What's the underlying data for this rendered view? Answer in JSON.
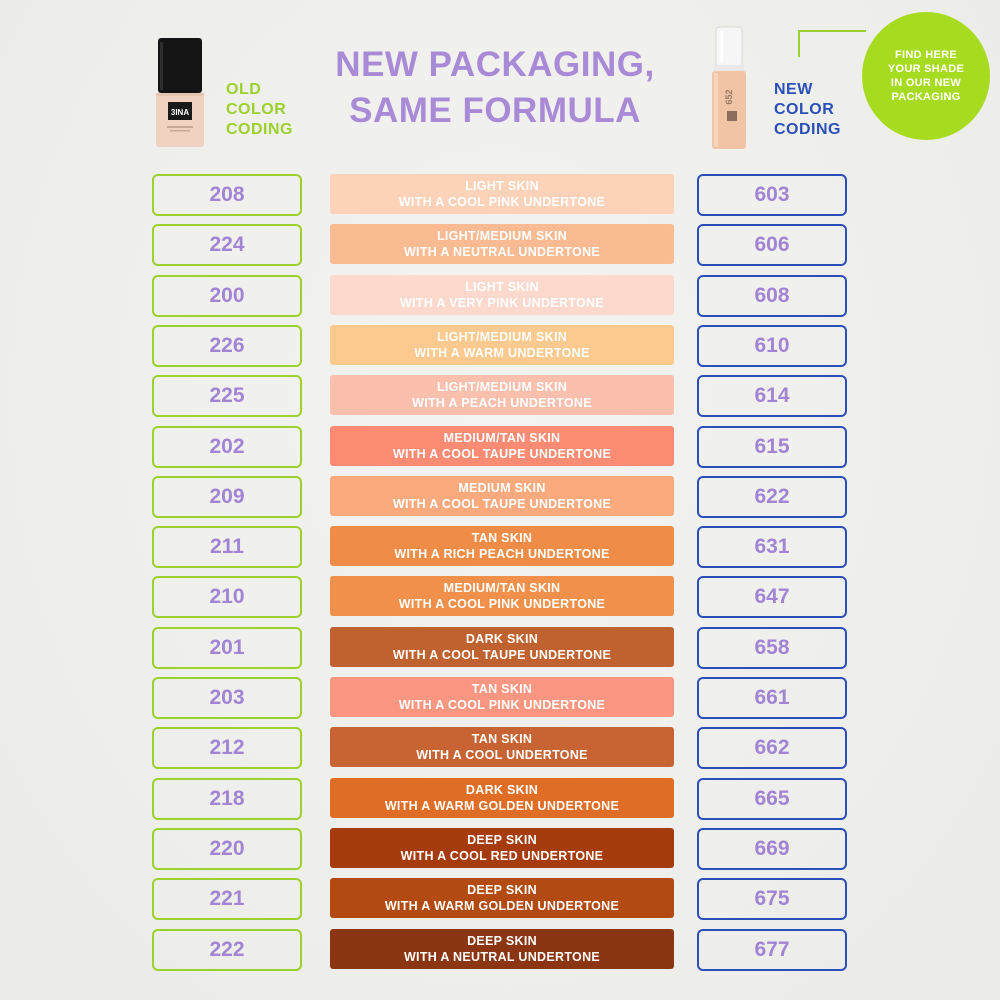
{
  "header": {
    "title_line1": "NEW PACKAGING,",
    "title_line2": "SAME FORMULA",
    "old_label": [
      "OLD",
      "COLOR",
      "CODING"
    ],
    "new_label": [
      "NEW",
      "COLOR",
      "CODING"
    ],
    "badge_text": [
      "FIND HERE",
      "YOUR SHADE",
      "IN OUR NEW",
      "PACKAGING"
    ],
    "old_bottle_brand": "3INA",
    "new_bottle_code": "652"
  },
  "colors": {
    "title": "#a88ad6",
    "old_accent": "#9bd12c",
    "new_accent": "#2b4fb8",
    "badge": "#a7db1f",
    "code_text": "#a184d4"
  },
  "rows": [
    {
      "old": "208",
      "new": "603",
      "line1": "LIGHT SKIN",
      "line2": "WITH A COOL PINK UNDERTONE",
      "color": "#fcd2b9"
    },
    {
      "old": "224",
      "new": "606",
      "line1": "LIGHT/MEDIUM SKIN",
      "line2": "WITH A NEUTRAL UNDERTONE",
      "color": "#fbbb92"
    },
    {
      "old": "200",
      "new": "608",
      "line1": "LIGHT SKIN",
      "line2": "WITH A VERY PINK UNDERTONE",
      "color": "#fcd9cc"
    },
    {
      "old": "226",
      "new": "610",
      "line1": "LIGHT/MEDIUM SKIN",
      "line2": "WITH A WARM UNDERTONE",
      "color": "#fcc98f"
    },
    {
      "old": "225",
      "new": "614",
      "line1": "LIGHT/MEDIUM SKIN",
      "line2": "WITH A PEACH UNDERTONE",
      "color": "#fbbfae"
    },
    {
      "old": "202",
      "new": "615",
      "line1": "MEDIUM/TAN SKIN",
      "line2": "WITH A COOL TAUPE UNDERTONE",
      "color": "#fb8b72"
    },
    {
      "old": "209",
      "new": "622",
      "line1": "MEDIUM SKIN",
      "line2": "WITH A COOL TAUPE UNDERTONE",
      "color": "#fbaa7e"
    },
    {
      "old": "211",
      "new": "631",
      "line1": "TAN SKIN",
      "line2": "WITH A RICH PEACH UNDERTONE",
      "color": "#ef8d48"
    },
    {
      "old": "210",
      "new": "647",
      "line1": "MEDIUM/TAN SKIN",
      "line2": "WITH A COOL PINK UNDERTONE",
      "color": "#f0904b"
    },
    {
      "old": "201",
      "new": "658",
      "line1": "DARK SKIN",
      "line2": "WITH A COOL TAUPE UNDERTONE",
      "color": "#c0622f"
    },
    {
      "old": "203",
      "new": "661",
      "line1": "TAN SKIN",
      "line2": "WITH A COOL PINK UNDERTONE",
      "color": "#fb9680"
    },
    {
      "old": "212",
      "new": "662",
      "line1": "TAN SKIN",
      "line2": "WITH A COOL UNDERTONE",
      "color": "#c86433"
    },
    {
      "old": "218",
      "new": "665",
      "line1": "DARK SKIN",
      "line2": "WITH A WARM GOLDEN UNDERTONE",
      "color": "#e06d25"
    },
    {
      "old": "220",
      "new": "669",
      "line1": "DEEP SKIN",
      "line2": "WITH A COOL RED UNDERTONE",
      "color": "#a63c0e"
    },
    {
      "old": "221",
      "new": "675",
      "line1": "DEEP SKIN",
      "line2": "WITH A WARM GOLDEN UNDERTONE",
      "color": "#b24a12"
    },
    {
      "old": "222",
      "new": "677",
      "line1": "DEEP SKIN",
      "line2": "WITH A NEUTRAL UNDERTONE",
      "color": "#8c3513"
    }
  ]
}
